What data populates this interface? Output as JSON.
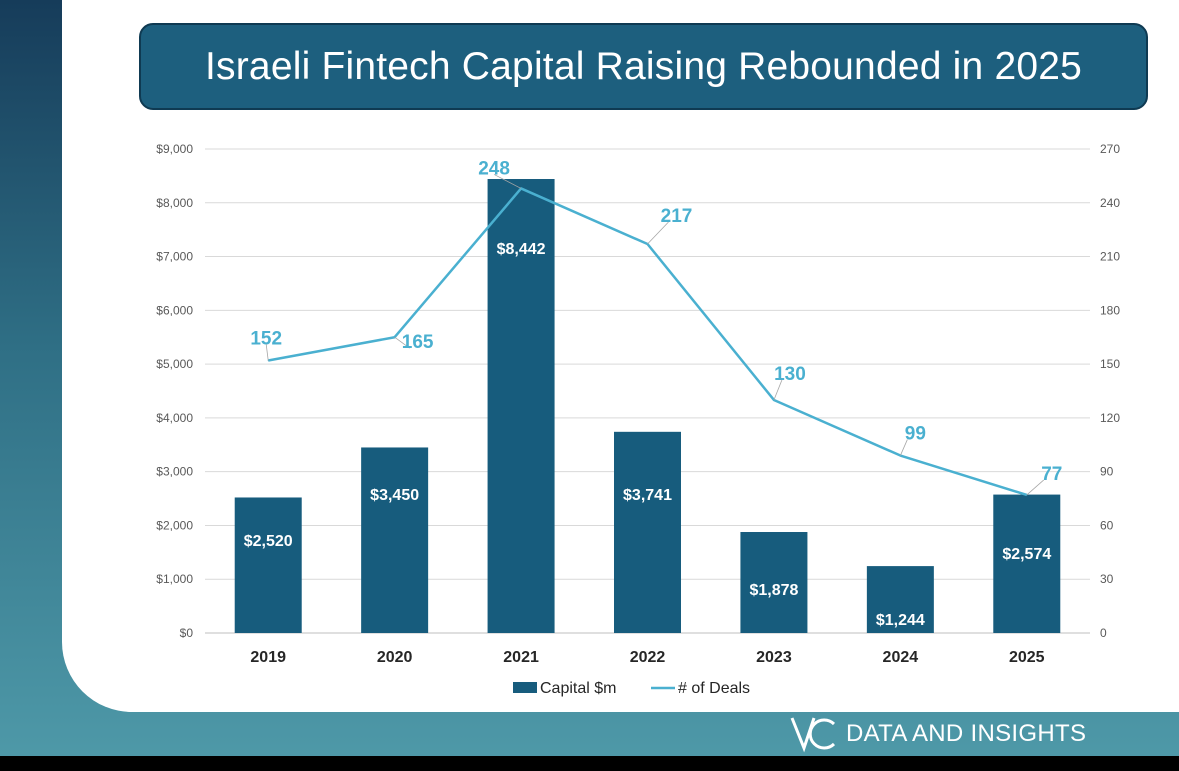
{
  "title": "Israeli Fintech Capital Raising Rebounded in 2025",
  "brand": {
    "text": "DATA AND INSIGHTS",
    "mark": "VC"
  },
  "colors": {
    "bar": "#175c7d",
    "line": "#4ab0d0",
    "grid": "#d9d9d9",
    "axis_text": "#595959",
    "title_bg": "#1d5f7e"
  },
  "chart_data": {
    "type": "bar",
    "categories": [
      "2019",
      "2020",
      "2021",
      "2022",
      "2023",
      "2024",
      "2025"
    ],
    "series": [
      {
        "name": "Capital $m",
        "type": "bar",
        "axis": "left",
        "values": [
          2520,
          3450,
          8442,
          3741,
          1878,
          1244,
          2574
        ],
        "labels": [
          "$2,520",
          "$3,450",
          "$8,442",
          "$3,741",
          "$1,878",
          "$1,244",
          "$2,574"
        ]
      },
      {
        "name": "# of Deals",
        "type": "line",
        "axis": "right",
        "values": [
          152,
          165,
          248,
          217,
          130,
          99,
          77
        ],
        "labels": [
          "152",
          "165",
          "248",
          "217",
          "130",
          "99",
          "77"
        ]
      }
    ],
    "y_left": {
      "min": 0,
      "max": 9000,
      "step": 1000,
      "ticks": [
        "$0",
        "$1,000",
        "$2,000",
        "$3,000",
        "$4,000",
        "$5,000",
        "$6,000",
        "$7,000",
        "$8,000",
        "$9,000"
      ]
    },
    "y_right": {
      "min": 0,
      "max": 270,
      "step": 30,
      "ticks": [
        "0",
        "30",
        "60",
        "90",
        "120",
        "150",
        "180",
        "210",
        "240",
        "270"
      ]
    },
    "legend": {
      "position": "bottom",
      "items": [
        "Capital $m",
        "# of Deals"
      ]
    },
    "grid": true
  }
}
